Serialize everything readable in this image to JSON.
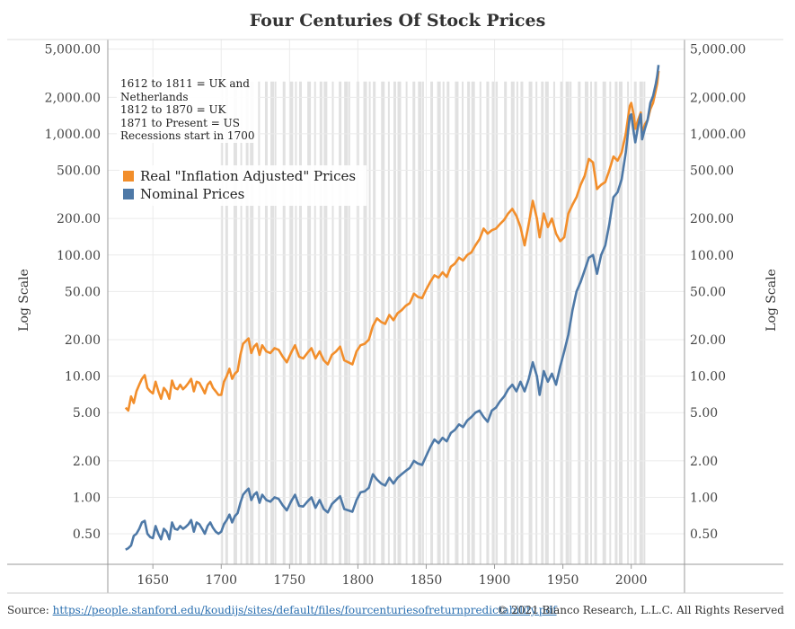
{
  "title": "Four Centuries Of Stock Prices",
  "y_axis_label_left": "Log Scale",
  "y_axis_label_right": "Log Scale",
  "note_lines": [
    "1612 to 1811 = UK and",
    "Netherlands",
    "1812 to 1870 = UK",
    "1871 to Present = US",
    "Recessions start in 1700"
  ],
  "legend": [
    {
      "label": "Real \"Inflation Adjusted\" Prices",
      "color": "#f28e2b"
    },
    {
      "label": "Nominal Prices",
      "color": "#4e79a7"
    }
  ],
  "footer": {
    "source_prefix": "Source: ",
    "source_url": "https://people.stanford.edu/koudijs/sites/default/files/fourcenturiesofreturnpredictability.pdf",
    "copyright": "© 2021 Bianco Research, L.L.C. All Rights Reserved"
  },
  "chart_data": {
    "type": "line",
    "y_scale": "log",
    "ylim": [
      0.28,
      6000
    ],
    "xlim": [
      1617,
      2039
    ],
    "x_ticks": [
      "1650",
      "1700",
      "1750",
      "1800",
      "1850",
      "1900",
      "1950",
      "2000"
    ],
    "y_ticks": [
      "5,000.00",
      "2,000.00",
      "1,000.00",
      "500.00",
      "200.00",
      "100.00",
      "50.00",
      "20.00",
      "10.00",
      "5.00",
      "2.00",
      "1.00",
      "0.50"
    ],
    "y_tick_values": [
      5000,
      2000,
      1000,
      500,
      200,
      100,
      50,
      20,
      10,
      5,
      2,
      1,
      0.5
    ],
    "grid": true,
    "recession_bands": {
      "start": 1700,
      "end": 2010,
      "color": "#d9d9d9"
    },
    "series": [
      {
        "name": "Real \"Inflation Adjusted\" Prices",
        "color": "#f28e2b",
        "x": [
          1630,
          1632,
          1634,
          1636,
          1638,
          1640,
          1642,
          1644,
          1646,
          1648,
          1650,
          1652,
          1654,
          1656,
          1658,
          1660,
          1662,
          1664,
          1666,
          1668,
          1670,
          1672,
          1674,
          1676,
          1678,
          1680,
          1682,
          1684,
          1686,
          1688,
          1690,
          1692,
          1694,
          1696,
          1698,
          1700,
          1702,
          1704,
          1706,
          1708,
          1710,
          1712,
          1714,
          1716,
          1718,
          1720,
          1722,
          1724,
          1726,
          1728,
          1730,
          1733,
          1736,
          1739,
          1742,
          1745,
          1748,
          1751,
          1754,
          1757,
          1760,
          1763,
          1766,
          1769,
          1772,
          1775,
          1778,
          1781,
          1784,
          1787,
          1790,
          1793,
          1796,
          1799,
          1802,
          1805,
          1808,
          1811,
          1814,
          1817,
          1820,
          1823,
          1826,
          1829,
          1832,
          1835,
          1838,
          1841,
          1844,
          1847,
          1850,
          1853,
          1856,
          1859,
          1862,
          1865,
          1868,
          1871,
          1874,
          1877,
          1880,
          1883,
          1886,
          1889,
          1892,
          1895,
          1898,
          1901,
          1904,
          1907,
          1910,
          1913,
          1916,
          1919,
          1922,
          1925,
          1928,
          1931,
          1933,
          1936,
          1939,
          1942,
          1945,
          1948,
          1951,
          1954,
          1957,
          1960,
          1963,
          1966,
          1969,
          1972,
          1975,
          1978,
          1981,
          1984,
          1987,
          1990,
          1993,
          1996,
          1999,
          2000,
          2002,
          2003,
          2005,
          2007,
          2008,
          2010,
          2012,
          2014,
          2016,
          2018,
          2019,
          2020
        ],
        "values": [
          5.5,
          5.2,
          6.8,
          6.0,
          7.5,
          8.5,
          9.5,
          10.2,
          8.0,
          7.5,
          7.2,
          9.0,
          7.5,
          6.5,
          8.0,
          7.5,
          6.5,
          9.2,
          8.0,
          7.8,
          8.5,
          7.8,
          8.2,
          8.8,
          9.5,
          7.5,
          9.0,
          8.8,
          8.0,
          7.2,
          8.5,
          9.0,
          8.0,
          7.5,
          7.0,
          7.0,
          9.0,
          10.0,
          11.5,
          9.5,
          10.5,
          11.0,
          15.0,
          18.5,
          19.5,
          20.5,
          15.5,
          17.5,
          18.5,
          15.0,
          18.0,
          16.0,
          15.5,
          17.0,
          16.5,
          14.5,
          13.0,
          15.5,
          18.0,
          14.5,
          14.0,
          15.5,
          17.0,
          14.0,
          16.0,
          13.5,
          12.5,
          15.0,
          16.0,
          17.5,
          13.5,
          13.0,
          12.5,
          16.0,
          18.0,
          18.5,
          20.0,
          26.0,
          30.0,
          28.0,
          27.0,
          32.0,
          29.0,
          33.0,
          35.0,
          38.0,
          40.0,
          48.0,
          45.0,
          44.0,
          52.0,
          60.0,
          68.0,
          65.0,
          72.0,
          66.0,
          80.0,
          85.0,
          95.0,
          90.0,
          100.0,
          105.0,
          120.0,
          135.0,
          165.0,
          150.0,
          160.0,
          165.0,
          180.0,
          195.0,
          220.0,
          240.0,
          210.0,
          170.0,
          120.0,
          180.0,
          280.0,
          200.0,
          140.0,
          220.0,
          170.0,
          200.0,
          150.0,
          130.0,
          140.0,
          220.0,
          260.0,
          300.0,
          380.0,
          450.0,
          620.0,
          580.0,
          350.0,
          380.0,
          400.0,
          500.0,
          650.0,
          600.0,
          700.0,
          1000.0,
          1700.0,
          1800.0,
          1400.0,
          1100.0,
          1300.0,
          1500.0,
          1000.0,
          1200.0,
          1300.0,
          1600.0,
          1800.0,
          2300.0,
          2600.0,
          3300.0
        ],
        "x_end_extra": []
      },
      {
        "name": "Nominal Prices",
        "color": "#4e79a7",
        "x": [
          1630,
          1632,
          1634,
          1636,
          1638,
          1640,
          1642,
          1644,
          1646,
          1648,
          1650,
          1652,
          1654,
          1656,
          1658,
          1660,
          1662,
          1664,
          1666,
          1668,
          1670,
          1672,
          1674,
          1676,
          1678,
          1680,
          1682,
          1684,
          1686,
          1688,
          1690,
          1692,
          1694,
          1696,
          1698,
          1700,
          1702,
          1704,
          1706,
          1708,
          1710,
          1712,
          1714,
          1716,
          1718,
          1720,
          1722,
          1724,
          1726,
          1728,
          1730,
          1733,
          1736,
          1739,
          1742,
          1745,
          1748,
          1751,
          1754,
          1757,
          1760,
          1763,
          1766,
          1769,
          1772,
          1775,
          1778,
          1781,
          1784,
          1787,
          1790,
          1793,
          1796,
          1799,
          1802,
          1805,
          1808,
          1811,
          1814,
          1817,
          1820,
          1823,
          1826,
          1829,
          1832,
          1835,
          1838,
          1841,
          1844,
          1847,
          1850,
          1853,
          1856,
          1859,
          1862,
          1865,
          1868,
          1871,
          1874,
          1877,
          1880,
          1883,
          1886,
          1889,
          1892,
          1895,
          1898,
          1901,
          1904,
          1907,
          1910,
          1913,
          1916,
          1919,
          1922,
          1925,
          1928,
          1931,
          1933,
          1936,
          1939,
          1942,
          1945,
          1948,
          1951,
          1954,
          1957,
          1960,
          1963,
          1966,
          1969,
          1972,
          1975,
          1978,
          1981,
          1984,
          1987,
          1990,
          1993,
          1996,
          1999,
          2000,
          2002,
          2003,
          2005,
          2007,
          2008,
          2010,
          2012,
          2014,
          2016,
          2018,
          2019,
          2020
        ],
        "values": [
          0.37,
          0.38,
          0.4,
          0.48,
          0.5,
          0.55,
          0.62,
          0.64,
          0.5,
          0.47,
          0.46,
          0.58,
          0.5,
          0.45,
          0.55,
          0.52,
          0.45,
          0.62,
          0.55,
          0.54,
          0.58,
          0.55,
          0.57,
          0.6,
          0.65,
          0.52,
          0.62,
          0.6,
          0.55,
          0.5,
          0.58,
          0.62,
          0.56,
          0.52,
          0.5,
          0.52,
          0.6,
          0.65,
          0.72,
          0.62,
          0.7,
          0.74,
          0.9,
          1.05,
          1.12,
          1.18,
          0.95,
          1.05,
          1.1,
          0.9,
          1.05,
          0.95,
          0.92,
          1.0,
          0.97,
          0.86,
          0.78,
          0.92,
          1.05,
          0.85,
          0.84,
          0.92,
          1.0,
          0.82,
          0.95,
          0.8,
          0.75,
          0.88,
          0.95,
          1.02,
          0.8,
          0.78,
          0.76,
          0.95,
          1.1,
          1.12,
          1.2,
          1.55,
          1.4,
          1.3,
          1.25,
          1.45,
          1.3,
          1.45,
          1.55,
          1.65,
          1.75,
          2.0,
          1.9,
          1.85,
          2.2,
          2.6,
          3.0,
          2.8,
          3.1,
          2.9,
          3.4,
          3.6,
          4.0,
          3.8,
          4.3,
          4.6,
          5.0,
          5.2,
          4.6,
          4.2,
          5.2,
          5.5,
          6.2,
          6.8,
          7.8,
          8.5,
          7.5,
          9.0,
          7.5,
          9.5,
          13.0,
          10.0,
          7.0,
          11.0,
          9.0,
          10.5,
          8.5,
          12.0,
          16.0,
          22.0,
          35.0,
          50.0,
          60.0,
          75.0,
          95.0,
          100.0,
          70.0,
          100.0,
          120.0,
          180.0,
          300.0,
          330.0,
          420.0,
          700.0,
          1400.0,
          1450.0,
          1000.0,
          850.0,
          1150.0,
          1450.0,
          900.0,
          1100.0,
          1300.0,
          1800.0,
          2050.0,
          2600.0,
          3000.0,
          3700.0
        ]
      }
    ]
  }
}
